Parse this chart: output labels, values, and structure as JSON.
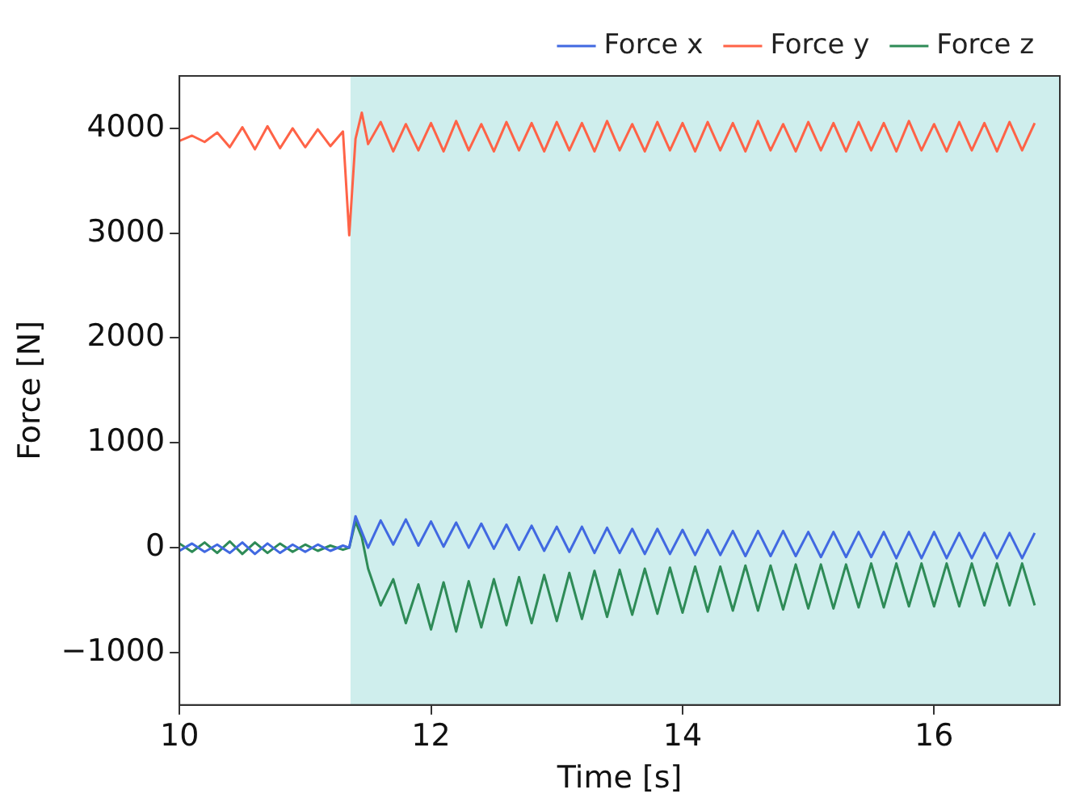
{
  "chart_data": {
    "type": "line",
    "xlabel": "Time [s]",
    "ylabel": "Force [N]",
    "x": [
      10,
      10.1,
      10.2,
      10.3,
      10.4,
      10.5,
      10.6,
      10.7,
      10.8,
      10.9,
      11,
      11.1,
      11.2,
      11.3,
      11.35,
      11.4,
      11.45,
      11.5,
      11.6,
      11.7,
      11.8,
      11.9,
      12,
      12.1,
      12.2,
      12.3,
      12.4,
      12.5,
      12.6,
      12.7,
      12.8,
      12.9,
      13,
      13.1,
      13.2,
      13.3,
      13.4,
      13.5,
      13.6,
      13.7,
      13.8,
      13.9,
      14,
      14.1,
      14.2,
      14.3,
      14.4,
      14.5,
      14.6,
      14.7,
      14.8,
      14.9,
      15,
      15.1,
      15.2,
      15.3,
      15.4,
      15.5,
      15.6,
      15.7,
      15.8,
      15.9,
      16,
      16.1,
      16.2,
      16.3,
      16.4,
      16.5,
      16.6,
      16.7,
      16.8
    ],
    "series": [
      {
        "name": "Force x",
        "color": "#4169e1",
        "values": [
          -30,
          40,
          -40,
          30,
          -50,
          50,
          -60,
          40,
          -50,
          30,
          -40,
          30,
          -30,
          20,
          0,
          300,
          150,
          0,
          260,
          30,
          270,
          20,
          250,
          10,
          240,
          0,
          230,
          -10,
          220,
          -20,
          210,
          -30,
          200,
          -40,
          200,
          -50,
          190,
          -50,
          180,
          -60,
          180,
          -60,
          170,
          -70,
          170,
          -70,
          160,
          -80,
          160,
          -80,
          160,
          -80,
          150,
          -90,
          150,
          -90,
          150,
          -90,
          150,
          -100,
          150,
          -100,
          150,
          -100,
          140,
          -100,
          140,
          -100,
          140,
          -100,
          140
        ]
      },
      {
        "name": "Force y",
        "color": "#ff6347",
        "values": [
          3880,
          3930,
          3870,
          3960,
          3820,
          4010,
          3800,
          4020,
          3810,
          4000,
          3820,
          3990,
          3830,
          3970,
          2980,
          3900,
          4150,
          3850,
          4060,
          3780,
          4040,
          3790,
          4050,
          3780,
          4070,
          3790,
          4040,
          3780,
          4060,
          3790,
          4050,
          3780,
          4060,
          3790,
          4050,
          3780,
          4070,
          3790,
          4040,
          3780,
          4060,
          3790,
          4050,
          3780,
          4060,
          3790,
          4050,
          3780,
          4070,
          3790,
          4040,
          3780,
          4060,
          3790,
          4050,
          3780,
          4060,
          3790,
          4050,
          3780,
          4070,
          3790,
          4040,
          3780,
          4060,
          3790,
          4050,
          3780,
          4060,
          3790,
          4050
        ]
      },
      {
        "name": "Force z",
        "color": "#2e8b57",
        "values": [
          40,
          -40,
          50,
          -50,
          60,
          -60,
          50,
          -50,
          40,
          -40,
          30,
          -30,
          20,
          -20,
          0,
          250,
          100,
          -200,
          -550,
          -300,
          -720,
          -350,
          -780,
          -330,
          -800,
          -320,
          -760,
          -300,
          -740,
          -280,
          -720,
          -260,
          -700,
          -240,
          -680,
          -220,
          -660,
          -210,
          -640,
          -200,
          -630,
          -190,
          -620,
          -180,
          -610,
          -180,
          -600,
          -170,
          -600,
          -170,
          -590,
          -160,
          -580,
          -160,
          -580,
          -160,
          -570,
          -150,
          -570,
          -150,
          -560,
          -150,
          -560,
          -150,
          -560,
          -150,
          -550,
          -150,
          -550,
          -150,
          -550
        ]
      }
    ],
    "xlim": [
      10,
      17
    ],
    "ylim": [
      -1500,
      4500
    ],
    "xticks": [
      10,
      12,
      14,
      16
    ],
    "yticks": [
      -1000,
      0,
      1000,
      2000,
      3000,
      4000
    ],
    "bands": [
      {
        "axis": "x",
        "from": 11.36,
        "to": 17,
        "color": "#cfeeed"
      }
    ],
    "legend": "top",
    "grid": false,
    "marker": "none",
    "line_style": "solid"
  }
}
